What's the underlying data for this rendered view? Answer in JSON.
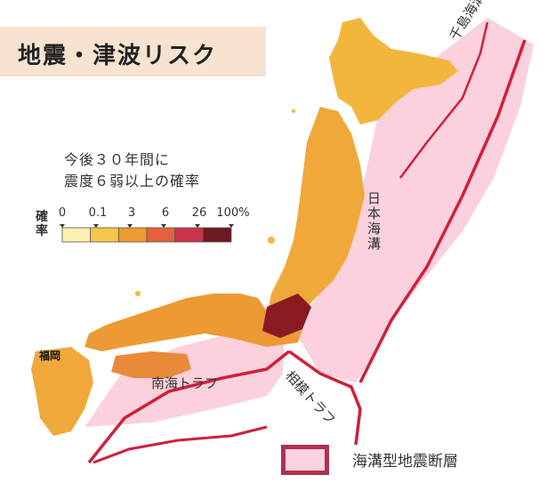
{
  "title": "地震・津波リスク",
  "probability_scale": {
    "title_line1": "今後３０年間に",
    "title_line2": "震度６弱以上の確率",
    "side_label": "確率",
    "ticks": [
      "0",
      "0.1",
      "3",
      "6",
      "26",
      "100%"
    ],
    "colors": [
      "#fbf0b0",
      "#f7c54a",
      "#ef9a32",
      "#e8603c",
      "#c9344a",
      "#6b1a1f"
    ]
  },
  "map_labels": {
    "city": "福岡",
    "trenches": {
      "kuril": "千島海溝",
      "japan": "日本海溝",
      "nankai": "南海トラフ",
      "sagami": "相模トラフ"
    }
  },
  "legend": {
    "label": "海溝型地震断層",
    "border_color": "#b0314f",
    "fill_color": "#fbd3de"
  },
  "colors": {
    "trench_zone_fill": "#f9c9d6",
    "trench_line": "#d11f3a",
    "land_low": "#f5b43a",
    "land_high": "#8a1a22",
    "title_bg": "#f7e3cf"
  }
}
